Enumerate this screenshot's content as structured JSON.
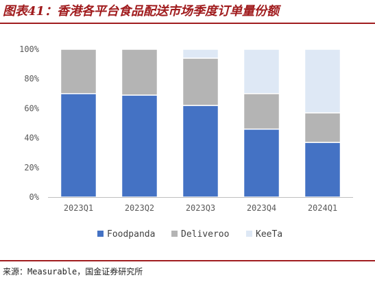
{
  "title": "图表41：香港各平台食品配送市场季度订单量份额",
  "source": "来源：Measurable，国金证券研究所",
  "colors": {
    "Foodpanda": "#4472c4",
    "Deliveroo": "#b4b4b4",
    "KeeTa": "#dee8f5"
  },
  "chart_data": {
    "type": "bar",
    "stacked": true,
    "categories": [
      "2023Q1",
      "2023Q2",
      "2023Q3",
      "2023Q4",
      "2024Q1"
    ],
    "series": [
      {
        "name": "Foodpanda",
        "values": [
          70,
          69,
          62,
          46,
          37
        ]
      },
      {
        "name": "Deliveroo",
        "values": [
          30,
          31,
          32,
          24,
          20
        ]
      },
      {
        "name": "KeeTa",
        "values": [
          0,
          0,
          6,
          30,
          43
        ]
      }
    ],
    "ylim": [
      0,
      100
    ],
    "yticks": [
      "0%",
      "20%",
      "40%",
      "60%",
      "80%",
      "100%"
    ],
    "legend": "bottom",
    "grid": false
  }
}
